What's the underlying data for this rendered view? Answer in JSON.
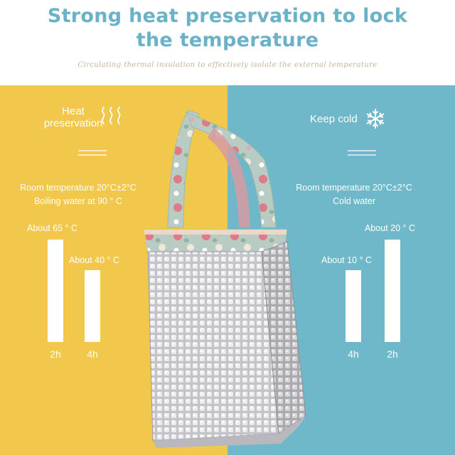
{
  "header": {
    "title_line1": "Strong heat preservation to lock",
    "title_line2": "the temperature",
    "subtitle": "Circulating thermal insulation to effectively isolate the external temperature"
  },
  "colors": {
    "left_panel": "#f1c84b",
    "right_panel": "#6fb8ca",
    "title": "#6ab2c7",
    "bars": "#ffffff"
  },
  "heat": {
    "title_line1": "Heat",
    "title_line2": "preservation",
    "icon": "steam-icon",
    "condition_line1": "Room temperature 20°C±2°C",
    "condition_line2": "Boiling water at 90 ° C",
    "bars": [
      {
        "label": "About 65 ° C",
        "time": "2h",
        "value": 65
      },
      {
        "label": "About 40 ° C",
        "time": "4h",
        "value": 40
      }
    ]
  },
  "cold": {
    "title": "Keep cold",
    "icon": "snowflake-icon",
    "condition_line1": "Room temperature 20°C±2°C",
    "condition_line2": "Cold water",
    "bars": [
      {
        "label": "About 10 ° C",
        "time": "4h",
        "value": 10
      },
      {
        "label": "About 20 ° C",
        "time": "2h",
        "value": 20
      }
    ]
  }
}
